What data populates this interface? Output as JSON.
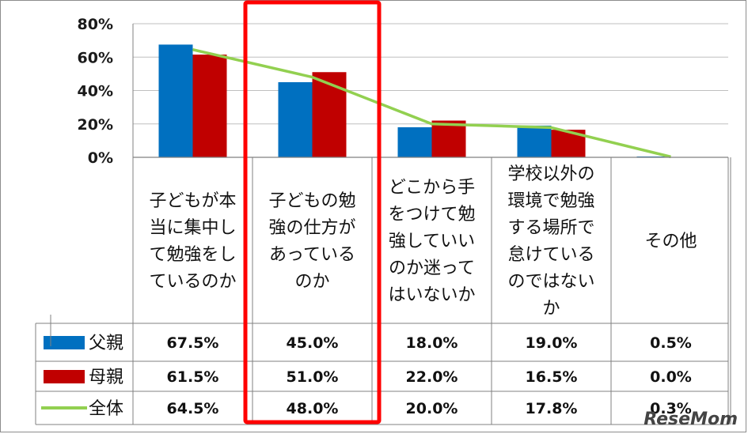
{
  "chart_data": {
    "type": "bar",
    "categories": [
      [
        "子どもが本",
        "当に集中し",
        "て勉強をし",
        "ているのか"
      ],
      [
        "子どもの勉",
        "強の仕方が",
        "あっている",
        "のか"
      ],
      [
        "どこから手",
        "をつけて勉",
        "強していい",
        "のか迷って",
        "はいないか"
      ],
      [
        "学校以外の",
        "環境で勉強",
        "する場所で",
        "怠けている",
        "のではない",
        "か"
      ],
      [
        "その他"
      ]
    ],
    "series": [
      {
        "name": "父親",
        "type": "bar",
        "color": "#0070c0",
        "values": [
          67.5,
          45.0,
          18.0,
          19.0,
          0.5
        ]
      },
      {
        "name": "母親",
        "type": "bar",
        "color": "#c00000",
        "values": [
          61.5,
          51.0,
          22.0,
          16.5,
          0.0
        ]
      },
      {
        "name": "全体",
        "type": "line",
        "color": "#92d050",
        "values": [
          64.5,
          48.0,
          20.0,
          17.8,
          0.3
        ]
      }
    ],
    "table_values": [
      [
        "67.5%",
        "45.0%",
        "18.0%",
        "19.0%",
        "0.5%"
      ],
      [
        "61.5%",
        "51.0%",
        "22.0%",
        "16.5%",
        "0.0%"
      ],
      [
        "64.5%",
        "48.0%",
        "20.0%",
        "17.8%",
        "0.3%"
      ]
    ],
    "y_ticks": [
      "0%",
      "20%",
      "40%",
      "60%",
      "80%"
    ],
    "ylim": [
      0,
      80
    ],
    "grid": true,
    "highlight_category_index": 1,
    "highlight_color": "#ff0000"
  },
  "watermark": "ReseMom"
}
